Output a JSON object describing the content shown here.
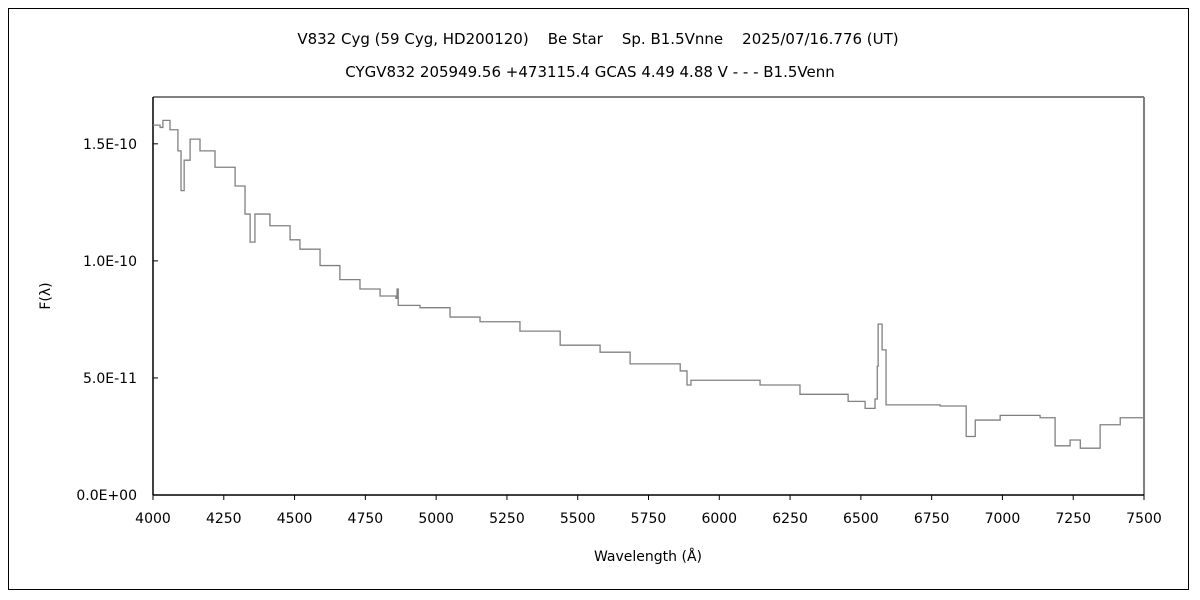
{
  "chart_data": {
    "type": "line",
    "title": "V832 Cyg (59 Cyg, HD200120)    Be Star    Sp. B1.5Vnne    2025/07/16.776 (UT)",
    "subtitle": "CYGV832 205949.56 +473115.4 GCAS 4.49 4.88 V - - - B1.5Venn",
    "xlabel": "Wavelength (Å)",
    "ylabel": "F(λ)",
    "xlim": [
      4000,
      7500
    ],
    "ylim": [
      0,
      1.7e-10
    ],
    "x_ticks": [
      "4000",
      "4250",
      "4500",
      "4750",
      "5000",
      "5250",
      "5500",
      "5750",
      "6000",
      "6250",
      "6500",
      "6750",
      "7000",
      "7250",
      "7500"
    ],
    "y_ticks": [
      {
        "value": 0,
        "label": "0.0E+00"
      },
      {
        "value": 5e-11,
        "label": "5.0E-11"
      },
      {
        "value": 1e-10,
        "label": "1.0E-10"
      },
      {
        "value": 1.5e-10,
        "label": "1.5E-10"
      }
    ],
    "grid": false,
    "line_color": "#808080",
    "series": [
      {
        "x": [
          4000,
          4025,
          4035,
          4060,
          4088,
          4099,
          4110,
          4131,
          4166,
          4219,
          4290,
          4325,
          4343,
          4360,
          4413,
          4484,
          4519,
          4590,
          4660,
          4731,
          4802,
          4858,
          4862,
          4866,
          4943,
          5049,
          5155,
          5296,
          5438,
          5579,
          5685,
          5862,
          5886,
          5900,
          6003,
          6144,
          6285,
          6455,
          6515,
          6550,
          6558,
          6561,
          6575,
          6589,
          6780,
          6861,
          6872,
          6904,
          6992,
          7133,
          7186,
          7239,
          7275,
          7345,
          7416,
          7500
        ],
        "y": [
          1.58e-10,
          1.57e-10,
          1.6e-10,
          1.56e-10,
          1.47e-10,
          1.3e-10,
          1.43e-10,
          1.52e-10,
          1.47e-10,
          1.4e-10,
          1.32e-10,
          1.2e-10,
          1.08e-10,
          1.2e-10,
          1.15e-10,
          1.09e-10,
          1.05e-10,
          9.8e-11,
          9.2e-11,
          8.8e-11,
          8.5e-11,
          8.4e-11,
          8.8e-11,
          8.1e-11,
          8e-11,
          7.6e-11,
          7.4e-11,
          7e-11,
          6.4e-11,
          6.1e-11,
          5.6e-11,
          5.3e-11,
          4.7e-11,
          4.9e-11,
          4.9e-11,
          4.7e-11,
          4.3e-11,
          4e-11,
          3.7e-11,
          4.1e-11,
          5.5e-11,
          7.3e-11,
          6.2e-11,
          3.85e-11,
          3.8e-11,
          3.8e-11,
          2.5e-11,
          3.2e-11,
          3.4e-11,
          3.3e-11,
          2.1e-11,
          2.35e-11,
          2e-11,
          3e-11,
          3.3e-11,
          3.4e-11
        ]
      }
    ]
  }
}
